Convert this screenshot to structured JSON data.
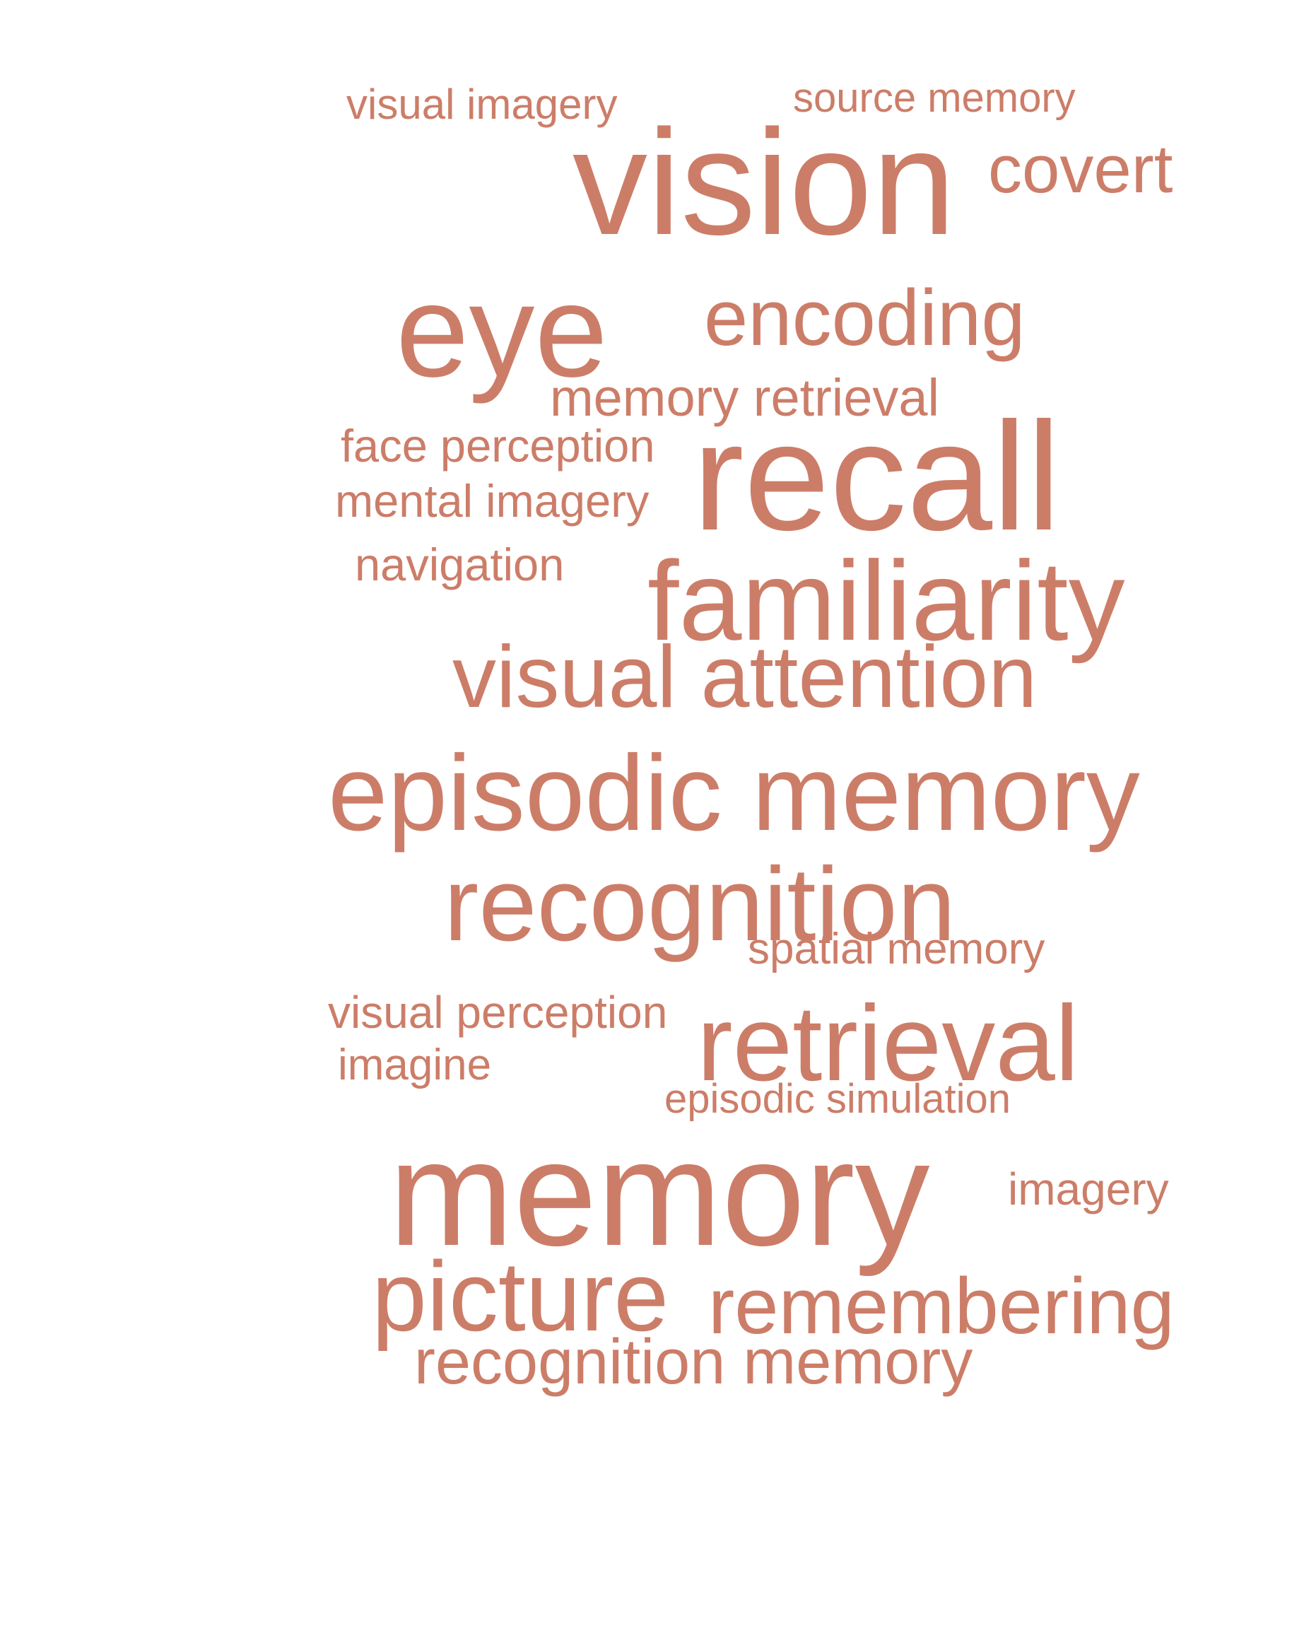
{
  "word_cloud": {
    "color": "#cc7d68",
    "words": [
      {
        "text": "visual imagery"
      },
      {
        "text": "source memory"
      },
      {
        "text": "vision"
      },
      {
        "text": "covert"
      },
      {
        "text": "eye"
      },
      {
        "text": "encoding"
      },
      {
        "text": "memory retrieval"
      },
      {
        "text": "face perception"
      },
      {
        "text": "recall"
      },
      {
        "text": "mental imagery"
      },
      {
        "text": "navigation"
      },
      {
        "text": "familiarity"
      },
      {
        "text": "visual attention"
      },
      {
        "text": "episodic memory"
      },
      {
        "text": "recognition"
      },
      {
        "text": "spatial memory"
      },
      {
        "text": "visual perception"
      },
      {
        "text": "retrieval"
      },
      {
        "text": "imagine"
      },
      {
        "text": "episodic simulation"
      },
      {
        "text": "memory"
      },
      {
        "text": "imagery"
      },
      {
        "text": "picture"
      },
      {
        "text": "remembering"
      },
      {
        "text": "recognition memory"
      }
    ]
  }
}
